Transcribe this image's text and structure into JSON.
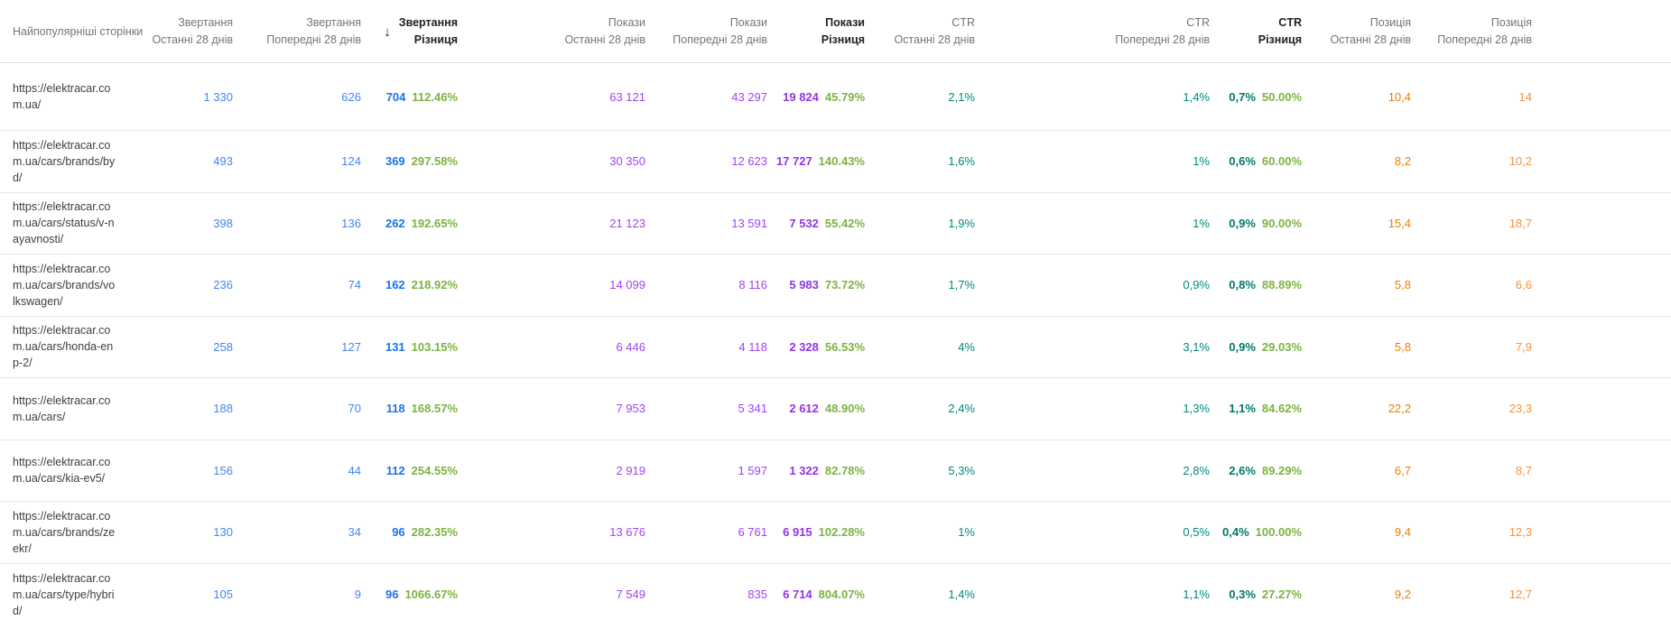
{
  "table": {
    "first_column_header": "Найпопулярніші сторінки",
    "sort_icon": "↓",
    "column_groups": [
      {
        "key": "clicks_last",
        "metric": "Звертання",
        "period": "Останні 28 днів",
        "color_key": "clicks"
      },
      {
        "key": "clicks_prev",
        "metric": "Звертання",
        "period": "Попередні 28 днів",
        "color_key": "clicks"
      },
      {
        "key": "clicks_diff",
        "metric": "Звертання",
        "period": "Різниця",
        "color_key": "clicks_diff",
        "is_diff": true,
        "sorted": true
      },
      {
        "key": "impressions_last",
        "metric": "Покази",
        "period": "Останні 28 днів",
        "color_key": "impressions"
      },
      {
        "key": "impressions_prev",
        "metric": "Покази",
        "period": "Попередні 28 днів",
        "color_key": "impressions"
      },
      {
        "key": "impressions_diff",
        "metric": "Покази",
        "period": "Різниця",
        "color_key": "impressions_diff",
        "is_diff": true
      },
      {
        "key": "ctr_last",
        "metric": "CTR",
        "period": "Останні 28 днів",
        "color_key": "ctr"
      },
      {
        "key": "ctr_prev",
        "metric": "CTR",
        "period": "Попередні 28 днів",
        "color_key": "ctr"
      },
      {
        "key": "ctr_diff",
        "metric": "CTR",
        "period": "Різниця",
        "color_key": "ctr_diff",
        "is_diff": true
      },
      {
        "key": "position_last",
        "metric": "Позиція",
        "period": "Останні 28 днів",
        "color_key": "position"
      },
      {
        "key": "position_prev",
        "metric": "Позиція",
        "period": "Попередні 28 днів",
        "color_key": "position_prev"
      }
    ],
    "rows": [
      {
        "page": "https://elektracar.com.ua/",
        "clicks_last": "1 330",
        "clicks_prev": "626",
        "clicks_diff": {
          "value": "704",
          "percent": "112.46%"
        },
        "impressions_last": "63 121",
        "impressions_prev": "43 297",
        "impressions_diff": {
          "value": "19 824",
          "percent": "45.79%"
        },
        "ctr_last": "2,1%",
        "ctr_prev": "1,4%",
        "ctr_diff": {
          "value": "0,7%",
          "percent": "50.00%"
        },
        "position_last": "10,4",
        "position_prev": "14"
      },
      {
        "page": "https://elektracar.com.ua/cars/brands/byd/",
        "clicks_last": "493",
        "clicks_prev": "124",
        "clicks_diff": {
          "value": "369",
          "percent": "297.58%"
        },
        "impressions_last": "30 350",
        "impressions_prev": "12 623",
        "impressions_diff": {
          "value": "17 727",
          "percent": "140.43%"
        },
        "ctr_last": "1,6%",
        "ctr_prev": "1%",
        "ctr_diff": {
          "value": "0,6%",
          "percent": "60.00%"
        },
        "position_last": "8,2",
        "position_prev": "10,2"
      },
      {
        "page": "https://elektracar.com.ua/cars/status/v-nayavnosti/",
        "clicks_last": "398",
        "clicks_prev": "136",
        "clicks_diff": {
          "value": "262",
          "percent": "192.65%"
        },
        "impressions_last": "21 123",
        "impressions_prev": "13 591",
        "impressions_diff": {
          "value": "7 532",
          "percent": "55.42%"
        },
        "ctr_last": "1,9%",
        "ctr_prev": "1%",
        "ctr_diff": {
          "value": "0,9%",
          "percent": "90.00%"
        },
        "position_last": "15,4",
        "position_prev": "18,7"
      },
      {
        "page": "https://elektracar.com.ua/cars/brands/volkswagen/",
        "clicks_last": "236",
        "clicks_prev": "74",
        "clicks_diff": {
          "value": "162",
          "percent": "218.92%"
        },
        "impressions_last": "14 099",
        "impressions_prev": "8 116",
        "impressions_diff": {
          "value": "5 983",
          "percent": "73.72%"
        },
        "ctr_last": "1,7%",
        "ctr_prev": "0,9%",
        "ctr_diff": {
          "value": "0,8%",
          "percent": "88.89%"
        },
        "position_last": "5,8",
        "position_prev": "6,6"
      },
      {
        "page": "https://elektracar.com.ua/cars/honda-enp-2/",
        "clicks_last": "258",
        "clicks_prev": "127",
        "clicks_diff": {
          "value": "131",
          "percent": "103.15%"
        },
        "impressions_last": "6 446",
        "impressions_prev": "4 118",
        "impressions_diff": {
          "value": "2 328",
          "percent": "56.53%"
        },
        "ctr_last": "4%",
        "ctr_prev": "3,1%",
        "ctr_diff": {
          "value": "0,9%",
          "percent": "29.03%"
        },
        "position_last": "5,8",
        "position_prev": "7,9"
      },
      {
        "page": "https://elektracar.com.ua/cars/",
        "clicks_last": "188",
        "clicks_prev": "70",
        "clicks_diff": {
          "value": "118",
          "percent": "168.57%"
        },
        "impressions_last": "7 953",
        "impressions_prev": "5 341",
        "impressions_diff": {
          "value": "2 612",
          "percent": "48.90%"
        },
        "ctr_last": "2,4%",
        "ctr_prev": "1,3%",
        "ctr_diff": {
          "value": "1,1%",
          "percent": "84.62%"
        },
        "position_last": "22,2",
        "position_prev": "23,3"
      },
      {
        "page": "https://elektracar.com.ua/cars/kia-ev5/",
        "clicks_last": "156",
        "clicks_prev": "44",
        "clicks_diff": {
          "value": "112",
          "percent": "254.55%"
        },
        "impressions_last": "2 919",
        "impressions_prev": "1 597",
        "impressions_diff": {
          "value": "1 322",
          "percent": "82.78%"
        },
        "ctr_last": "5,3%",
        "ctr_prev": "2,8%",
        "ctr_diff": {
          "value": "2,6%",
          "percent": "89.29%"
        },
        "position_last": "6,7",
        "position_prev": "8,7"
      },
      {
        "page": "https://elektracar.com.ua/cars/brands/zeekr/",
        "clicks_last": "130",
        "clicks_prev": "34",
        "clicks_diff": {
          "value": "96",
          "percent": "282.35%"
        },
        "impressions_last": "13 676",
        "impressions_prev": "6 761",
        "impressions_diff": {
          "value": "6 915",
          "percent": "102.28%"
        },
        "ctr_last": "1%",
        "ctr_prev": "0,5%",
        "ctr_diff": {
          "value": "0,4%",
          "percent": "100.00%"
        },
        "position_last": "9,4",
        "position_prev": "12,3"
      },
      {
        "page": "https://elektracar.com.ua/cars/type/hybrid/",
        "clicks_last": "105",
        "clicks_prev": "9",
        "clicks_diff": {
          "value": "96",
          "percent": "1066.67%"
        },
        "impressions_last": "7 549",
        "impressions_prev": "835",
        "impressions_diff": {
          "value": "6 714",
          "percent": "804.07%"
        },
        "ctr_last": "1,4%",
        "ctr_prev": "1,1%",
        "ctr_diff": {
          "value": "0,3%",
          "percent": "27.27%"
        },
        "position_last": "9,2",
        "position_prev": "12,7"
      }
    ]
  },
  "colors": {
    "clicks": "#4285f4",
    "clicks_diff": "#1a73e8",
    "impressions": "#a142f4",
    "impressions_diff": "#9334e6",
    "ctr": "#00897b",
    "ctr_diff": "#00796b",
    "position": "#f07d00",
    "position_prev": "#f69240",
    "diff_percent": "#7cb342"
  }
}
